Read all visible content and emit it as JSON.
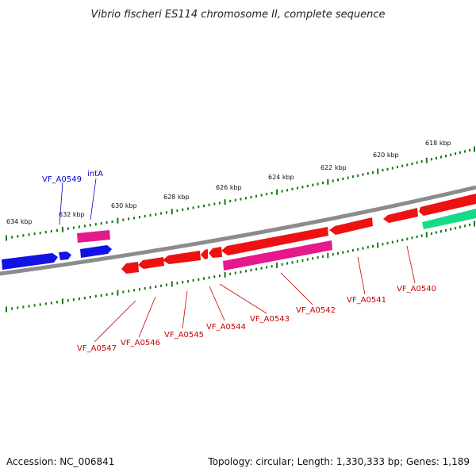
{
  "title": "Vibrio fischeri ES114 chromosome II, complete sequence",
  "accession": "Accession: NC_006841",
  "topology": "Topology: circular; Length: 1,330,333 bp; Genes: 1,189",
  "colors": {
    "backbone": "#8c8c8c",
    "ticks": "#127a12",
    "gene_red": "#ee1111",
    "gene_magenta": "#e5198c",
    "gene_blue": "#1212e6",
    "gene_green": "#18d98a",
    "label_red": "#cc0000",
    "label_blue": "#0000cc"
  },
  "kbp_labels": [
    "634 kbp",
    "632 kbp",
    "630 kbp",
    "628 kbp",
    "626 kbp",
    "624 kbp",
    "622 kbp",
    "620 kbp",
    "618 kbp"
  ],
  "gene_labels_top": [
    "VF_A0549",
    "intA"
  ],
  "gene_labels_bottom": [
    "VF_A0547",
    "VF_A0546",
    "VF_A0545",
    "VF_A0544",
    "VF_A0543",
    "VF_A0542",
    "VF_A0541",
    "VF_A0540"
  ]
}
